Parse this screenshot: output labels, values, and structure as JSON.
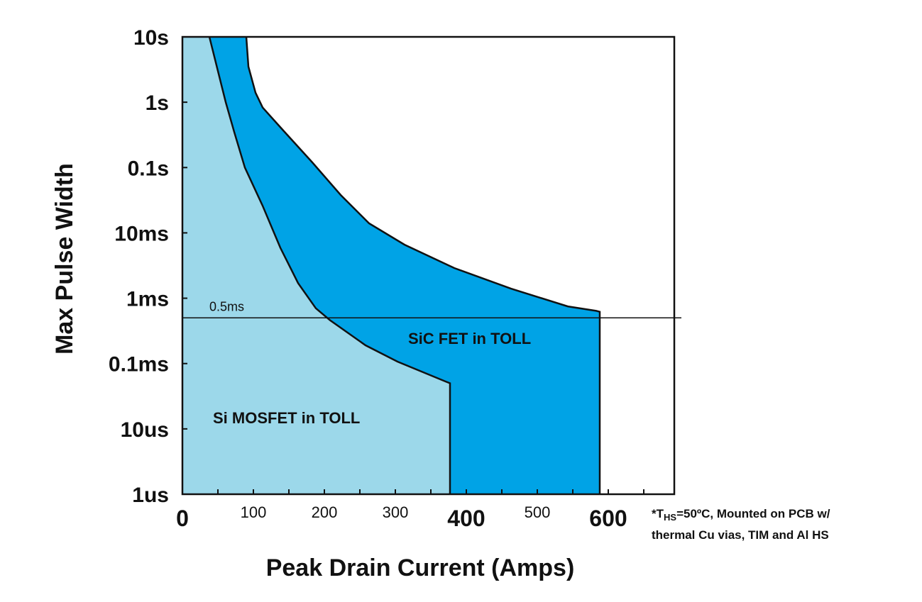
{
  "chart_data": {
    "type": "area",
    "title": "",
    "xlabel": "Peak Drain Current (Amps)",
    "ylabel": "Max Pulse Width",
    "xlim": [
      0,
      693
    ],
    "ylim_seconds": [
      1e-06,
      10
    ],
    "yscale": "log",
    "x_ticks": [
      {
        "value": 0,
        "label": "0",
        "major": true
      },
      {
        "value": 100,
        "label": "100",
        "major": false
      },
      {
        "value": 200,
        "label": "200",
        "major": false
      },
      {
        "value": 300,
        "label": "300",
        "major": false
      },
      {
        "value": 400,
        "label": "400",
        "major": true
      },
      {
        "value": 500,
        "label": "500",
        "major": false
      },
      {
        "value": 600,
        "label": "600",
        "major": true
      }
    ],
    "y_ticks": [
      {
        "value": 10,
        "label": "10s"
      },
      {
        "value": 1,
        "label": "1s"
      },
      {
        "value": 0.1,
        "label": "0.1s"
      },
      {
        "value": 0.01,
        "label": "10ms"
      },
      {
        "value": 0.001,
        "label": "1ms"
      },
      {
        "value": 0.0001,
        "label": "0.1ms"
      },
      {
        "value": 1e-05,
        "label": "10us"
      },
      {
        "value": 1e-06,
        "label": "1us"
      }
    ],
    "series": [
      {
        "name": "SiC FET in TOLL",
        "color": "#00a3e6",
        "points": [
          [
            90,
            10
          ],
          [
            93,
            3.5
          ],
          [
            103,
            1.4
          ],
          [
            113,
            0.83
          ],
          [
            143,
            0.36
          ],
          [
            183,
            0.12
          ],
          [
            223,
            0.038
          ],
          [
            263,
            0.014
          ],
          [
            313,
            0.0066
          ],
          [
            383,
            0.0029
          ],
          [
            463,
            0.0014
          ],
          [
            543,
            0.00075
          ],
          [
            583,
            0.00064
          ],
          [
            588,
            0.00062
          ],
          [
            588,
            1e-06
          ]
        ]
      },
      {
        "name": "Si MOSFET in TOLL",
        "color": "#9cd8ea",
        "points": [
          [
            38,
            10
          ],
          [
            61,
            1
          ],
          [
            73,
            0.35
          ],
          [
            88,
            0.1
          ],
          [
            113,
            0.026
          ],
          [
            138,
            0.0059
          ],
          [
            163,
            0.0017
          ],
          [
            188,
            0.0007
          ],
          [
            208,
            0.00046
          ],
          [
            258,
            0.00019
          ],
          [
            303,
            0.000107
          ],
          [
            371,
            5.3e-05
          ],
          [
            377,
            5e-05
          ],
          [
            377,
            1e-06
          ]
        ]
      }
    ],
    "reference_line": {
      "value": 0.0005,
      "label": "0.5ms"
    },
    "annotations": {
      "note_line1_prefix": "*T",
      "note_line1_sub": "HS",
      "note_line1_suffix": "=50ºC, Mounted on PCB w/",
      "note_line2": "thermal Cu vias, TIM and Al HS"
    },
    "grid": false,
    "legend": "none"
  }
}
